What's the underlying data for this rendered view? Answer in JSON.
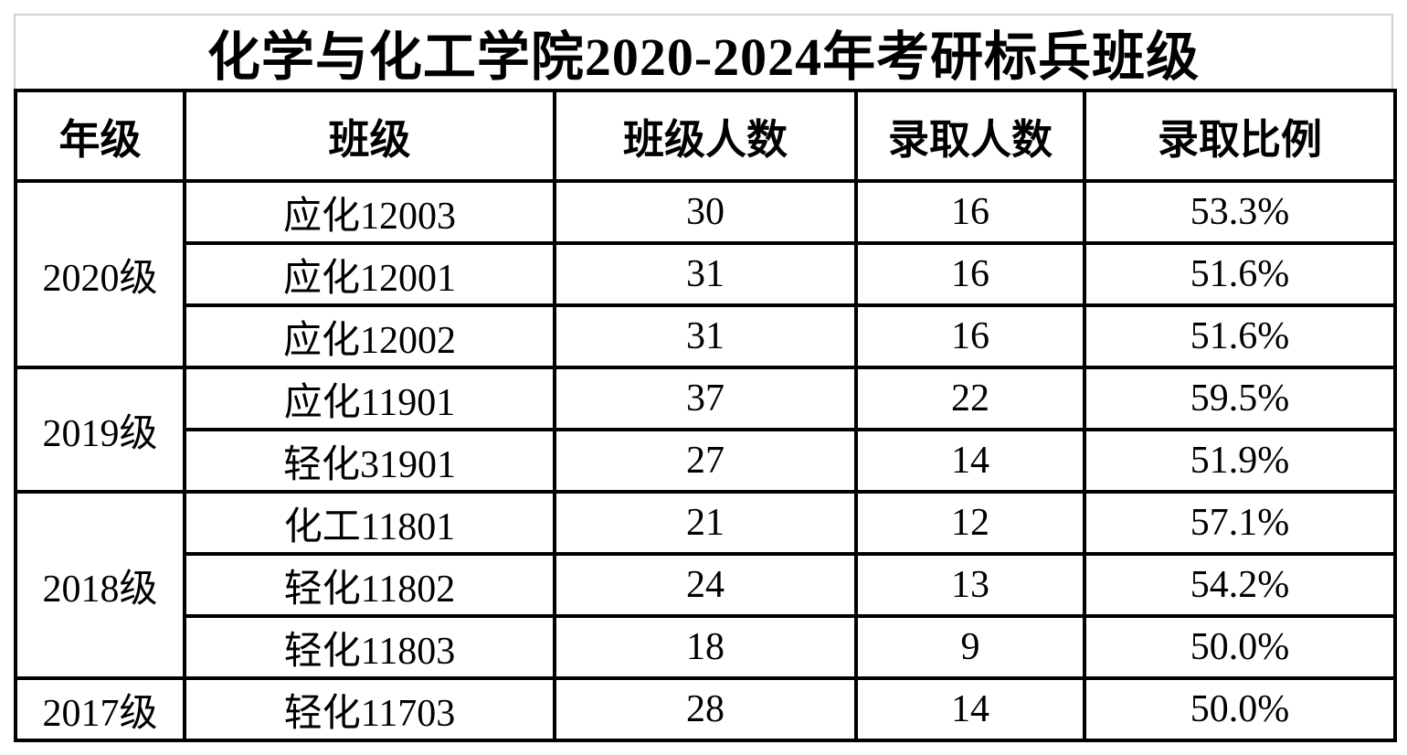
{
  "title": "化学与化工学院2020-2024年考研标兵班级",
  "columns": [
    "年级",
    "班级",
    "班级人数",
    "录取人数",
    "录取比例"
  ],
  "groups": [
    {
      "grade": "2020级",
      "rows": [
        {
          "class": "应化12003",
          "class_size": "30",
          "admitted": "16",
          "ratio": "53.3%"
        },
        {
          "class": "应化12001",
          "class_size": "31",
          "admitted": "16",
          "ratio": "51.6%"
        },
        {
          "class": "应化12002",
          "class_size": "31",
          "admitted": "16",
          "ratio": "51.6%"
        }
      ]
    },
    {
      "grade": "2019级",
      "rows": [
        {
          "class": "应化11901",
          "class_size": "37",
          "admitted": "22",
          "ratio": "59.5%"
        },
        {
          "class": "轻化31901",
          "class_size": "27",
          "admitted": "14",
          "ratio": "51.9%"
        }
      ]
    },
    {
      "grade": "2018级",
      "rows": [
        {
          "class": "化工11801",
          "class_size": "21",
          "admitted": "12",
          "ratio": "57.1%"
        },
        {
          "class": "轻化11802",
          "class_size": "24",
          "admitted": "13",
          "ratio": "54.2%"
        },
        {
          "class": "轻化11803",
          "class_size": "18",
          "admitted": "9",
          "ratio": "50.0%"
        }
      ]
    },
    {
      "grade": "2017级",
      "rows": [
        {
          "class": "轻化11703",
          "class_size": "28",
          "admitted": "14",
          "ratio": "50.0%"
        }
      ]
    }
  ],
  "colors": {
    "text": "#000000",
    "table_border": "#000000",
    "outer_gridline": "#c9d6cd",
    "background": "#ffffff"
  }
}
